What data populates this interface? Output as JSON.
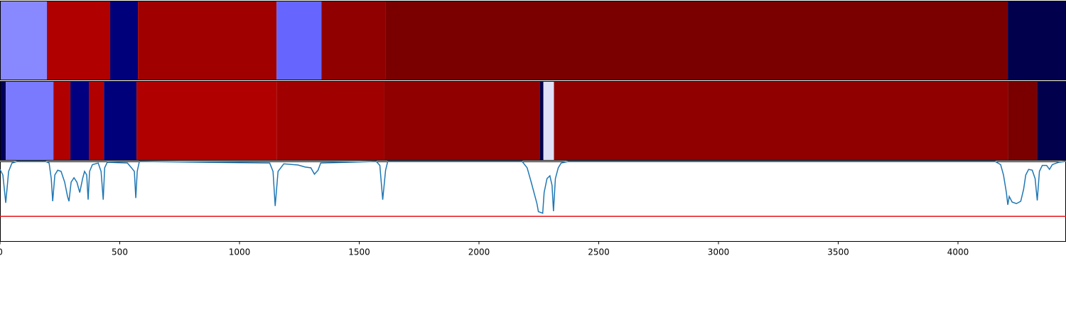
{
  "chart_data": [
    {
      "type": "strip",
      "xlim": [
        0,
        4451
      ],
      "edges": [
        0,
        196,
        460,
        576,
        1155,
        1342,
        1610,
        4208,
        4451
      ],
      "colors": [
        "#8888ff",
        "#b00000",
        "#00007a",
        "#a00000",
        "#6666ff",
        "#900000",
        "#7a0000",
        "#00004c"
      ]
    },
    {
      "type": "strip",
      "xlim": [
        0,
        4451
      ],
      "edges": [
        0,
        24,
        223,
        288,
        294,
        371,
        434,
        570,
        1155,
        1604,
        2254,
        2269,
        2313,
        4208,
        4330,
        4451
      ],
      "colors": [
        "#00005a",
        "#7a7aff",
        "#b00000",
        "#a00000",
        "#000080",
        "#b00000",
        "#00007a",
        "#b00000",
        "#a00000",
        "#900000",
        "#00004c",
        "#e0e0f8",
        "#900000",
        "#7a0000",
        "#00004c"
      ]
    },
    {
      "type": "line",
      "xlim": [
        0,
        4451
      ],
      "ylim": [
        0,
        1
      ],
      "xticks": [
        0,
        500,
        1000,
        1500,
        2000,
        2500,
        3000,
        3500,
        4000
      ],
      "x": [
        0,
        12,
        24,
        36,
        50,
        71,
        190,
        205,
        214,
        220,
        229,
        241,
        255,
        270,
        282,
        288,
        297,
        309,
        321,
        333,
        345,
        353,
        362,
        368,
        374,
        386,
        410,
        422,
        431,
        437,
        448,
        532,
        549,
        561,
        567,
        573,
        582,
        1126,
        1140,
        1149,
        1161,
        1185,
        1244,
        1274,
        1298,
        1313,
        1328,
        1339,
        1571,
        1586,
        1598,
        1610,
        1619,
        2180,
        2201,
        2218,
        2242,
        2248,
        2266,
        2272,
        2284,
        2296,
        2305,
        2311,
        2319,
        2331,
        2343,
        2373,
        4155,
        4178,
        4190,
        4202,
        4208,
        4214,
        4226,
        4244,
        4262,
        4274,
        4283,
        4295,
        4310,
        4322,
        4331,
        4340,
        4352,
        4370,
        4382,
        4394,
        4421,
        4451
      ],
      "series": [
        {
          "color": "#1f77b4",
          "values": [
            0.9,
            0.83,
            0.48,
            0.875,
            0.98,
            1.0,
            1.0,
            0.98,
            0.785,
            0.5,
            0.83,
            0.89,
            0.875,
            0.74,
            0.56,
            0.5,
            0.74,
            0.795,
            0.74,
            0.61,
            0.785,
            0.875,
            0.83,
            0.52,
            0.875,
            0.96,
            0.98,
            0.875,
            0.52,
            0.92,
            0.99,
            0.98,
            0.92,
            0.875,
            0.54,
            0.875,
            1.0,
            0.98,
            0.875,
            0.44,
            0.875,
            0.97,
            0.955,
            0.93,
            0.92,
            0.84,
            0.89,
            0.98,
            1.0,
            0.95,
            0.52,
            0.89,
            1.0,
            1.0,
            0.92,
            0.74,
            0.47,
            0.37,
            0.35,
            0.61,
            0.785,
            0.82,
            0.7,
            0.375,
            0.785,
            0.92,
            0.98,
            1.0,
            1.0,
            0.96,
            0.83,
            0.61,
            0.455,
            0.56,
            0.49,
            0.47,
            0.5,
            0.65,
            0.83,
            0.9,
            0.89,
            0.785,
            0.51,
            0.875,
            0.95,
            0.95,
            0.9,
            0.96,
            0.99,
            1.0
          ]
        }
      ],
      "hline": {
        "value": 0.31,
        "color": "#e8171b"
      }
    }
  ]
}
